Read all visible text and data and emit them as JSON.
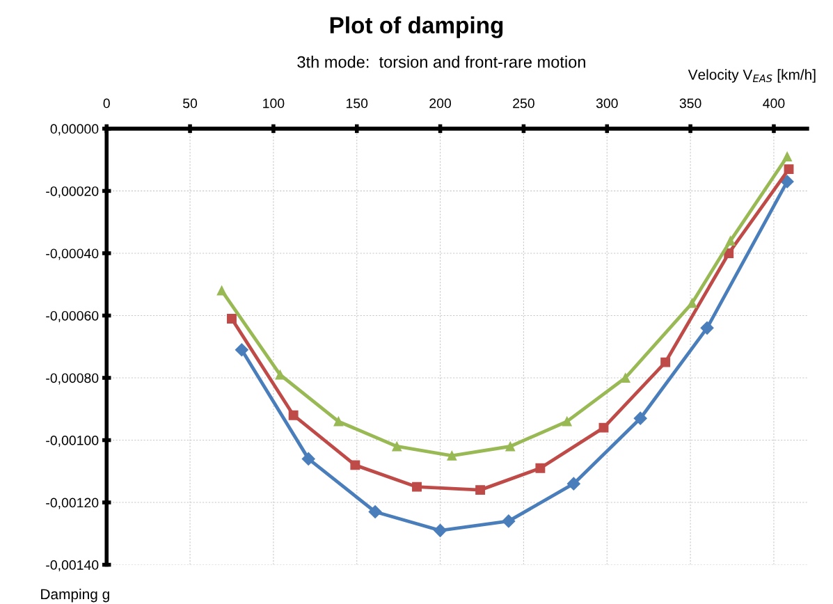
{
  "chart_data": {
    "type": "line",
    "title": "Plot of damping",
    "subtitle": "3th mode:  torsion and front-rare motion",
    "xlabel": "Velocity V$_{EAS}$ [km/h]",
    "ylabel": "Damping g",
    "xlim": [
      0,
      420
    ],
    "xticks": [
      0,
      50,
      100,
      150,
      200,
      250,
      300,
      350,
      400
    ],
    "ylim": [
      -0.0014,
      0
    ],
    "yticks": [
      {
        "value": 0,
        "label": "0,00000"
      },
      {
        "value": -0.0002,
        "label": "-0,00020"
      },
      {
        "value": -0.0004,
        "label": "-0,00040"
      },
      {
        "value": -0.0006,
        "label": "-0,00060"
      },
      {
        "value": -0.0008,
        "label": "-0,00080"
      },
      {
        "value": -0.001,
        "label": "-0,00100"
      },
      {
        "value": -0.0012,
        "label": "-0,00120"
      },
      {
        "value": -0.0014,
        "label": "-0,00140"
      }
    ],
    "grid": true,
    "legend": false,
    "series": [
      {
        "color": "#4a7ebb",
        "marker": "diamond",
        "x": [
          81,
          121,
          161,
          200,
          241,
          280,
          320,
          360,
          408
        ],
        "values": [
          -0.00071,
          -0.00106,
          -0.00123,
          -0.00129,
          -0.00126,
          -0.00114,
          -0.00093,
          -0.00064,
          -0.00017
        ]
      },
      {
        "color": "#be4b48",
        "marker": "square",
        "x": [
          75,
          112,
          149,
          186,
          224,
          260,
          298,
          335,
          373,
          409
        ],
        "values": [
          -0.00061,
          -0.00092,
          -0.00108,
          -0.00115,
          -0.00116,
          -0.00109,
          -0.00096,
          -0.00075,
          -0.0004,
          -0.00013
        ]
      },
      {
        "color": "#98b954",
        "marker": "triangle",
        "x": [
          69,
          104,
          139,
          174,
          207,
          242,
          276,
          311,
          351,
          374,
          408
        ],
        "values": [
          -0.00052,
          -0.00079,
          -0.00094,
          -0.00102,
          -0.00105,
          -0.00102,
          -0.00094,
          -0.0008,
          -0.00056,
          -0.00036,
          -9e-05
        ]
      }
    ]
  }
}
